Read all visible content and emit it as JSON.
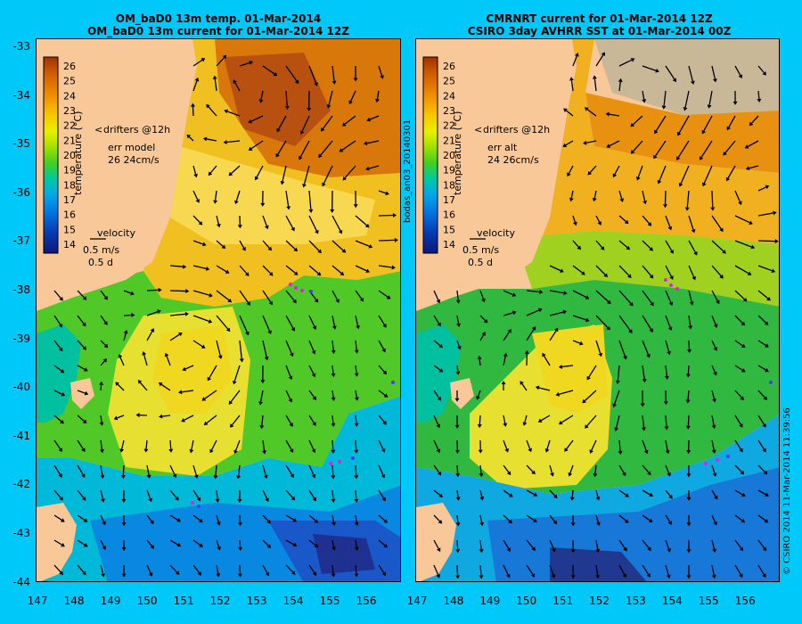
{
  "left_panel": {
    "title_line1": "OM_baD0 13m temp. 01-Mar-2014",
    "title_line2": "OM_baD0 13m current for 01-Mar-2014 12Z",
    "legend": {
      "drifters": "drifters @12h",
      "err_label": "err model",
      "err_values": "26 24cm/s",
      "velocity": "velocity",
      "speed": "0.5 m/s",
      "duration": "0.5 d"
    }
  },
  "right_panel": {
    "title_line1": "CMRNRT current for 01-Mar-2014 12Z",
    "title_line2": "CSIRO 3day AVHRR SST at 01-Mar-2014 00Z",
    "legend": {
      "drifters": "drifters @12h",
      "err_label": "err alt",
      "err_values": "24 26cm/s",
      "velocity": "velocity",
      "speed": "0.5 m/s",
      "duration": "0.5 d"
    }
  },
  "colorbar": {
    "label": "temperature (°C)",
    "ticks": [
      "26",
      "25",
      "24",
      "23",
      "22",
      "21",
      "20",
      "19",
      "18",
      "17",
      "16",
      "15",
      "14"
    ]
  },
  "axes": {
    "lat_labels": [
      "-33",
      "-34",
      "-35",
      "-36",
      "-37",
      "-38",
      "-39",
      "-40",
      "-41",
      "-42",
      "-43",
      "-44"
    ],
    "lon_labels": [
      "147",
      "148",
      "149",
      "150",
      "151",
      "152",
      "153",
      "154",
      "155",
      "156"
    ]
  },
  "side_text_left": "bodas_an03_20140301",
  "side_text_right": "© CSIRO 2014   11-Mar-2014 11:39:56",
  "colors": {
    "background": "#00c8f8",
    "land": "#f8c898",
    "drifter": "#e020e0"
  }
}
